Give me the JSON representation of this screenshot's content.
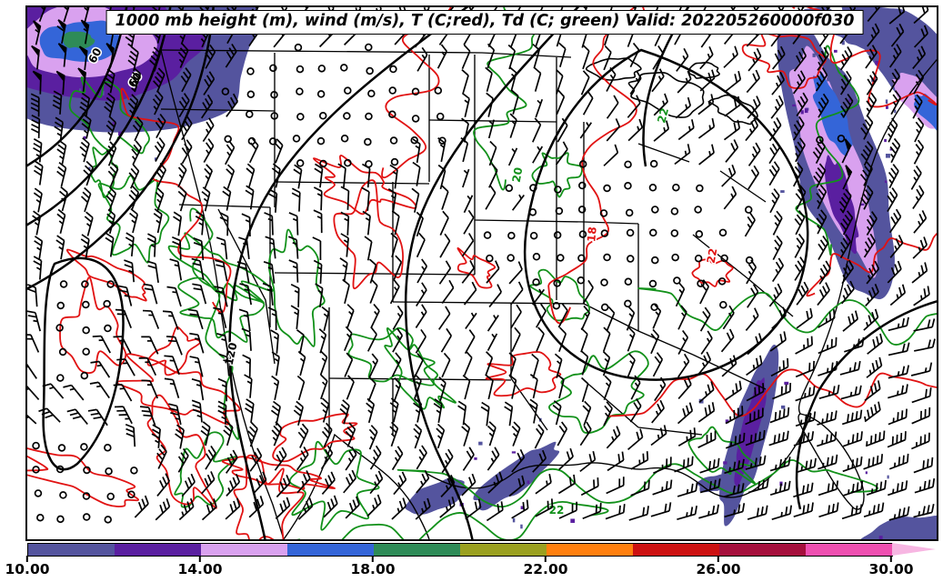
{
  "title": "1000 mb height (m), wind (m/s), T (C;red), Td (C; green) Valid: 202205260000f030",
  "chart_data": {
    "type": "heatmap",
    "subtype": "weather-contour-map",
    "region": "Continental United States",
    "level": "1000 mb",
    "valid_time": "202205260000",
    "forecast_hour": "f030",
    "fields": [
      {
        "name": "geopotential height",
        "units": "m",
        "style": "black contours"
      },
      {
        "name": "wind",
        "units": "m/s",
        "style": "barbs, calm circles"
      },
      {
        "name": "temperature",
        "units": "C",
        "style": "red contours"
      },
      {
        "name": "dewpoint",
        "units": "C",
        "style": "green contours"
      }
    ],
    "contour_labels": {
      "height": [
        "60",
        "60",
        "120"
      ],
      "temperature": [
        "18",
        "22"
      ],
      "dewpoint": [
        "20",
        "22",
        "22"
      ]
    },
    "contour_colors": {
      "height": "#000000",
      "temperature": "#e11212",
      "dewpoint": "#12911a",
      "wind": "#000000"
    },
    "colorbar": {
      "orientation": "horizontal",
      "extend": "max",
      "levels": [
        10,
        12,
        14,
        16,
        18,
        20,
        22,
        24,
        26,
        28,
        30
      ],
      "tick_labels": [
        "10.00",
        "14.00",
        "18.00",
        "22.00",
        "26.00",
        "30.00"
      ],
      "colors": [
        "#54549e",
        "#5a1fa0",
        "#d9a1ef",
        "#3465d8",
        "#2e8b57",
        "#9aa020",
        "#ff7f0e",
        "#cc1111",
        "#a50f3c",
        "#ee4fb0"
      ],
      "extend_color": "#f7b6e2"
    },
    "shaded_regions": [
      {
        "name": "pacific-northwest-low",
        "fill_levels": [
          "#54549e",
          "#5a1fa0",
          "#d9a1ef",
          "#3465d8",
          "#2e8b57"
        ]
      },
      {
        "name": "atlantic-coast-band",
        "fill_levels": [
          "#54549e",
          "#d9a1ef",
          "#3465d8",
          "#5a1fa0"
        ]
      },
      {
        "name": "appalachian-band",
        "fill_levels": [
          "#54549e",
          "#5a1fa0"
        ]
      },
      {
        "name": "gulf-coast-blob",
        "fill_levels": [
          "#54549e"
        ]
      },
      {
        "name": "southeast-corner-blob",
        "fill_levels": [
          "#54549e"
        ]
      }
    ]
  }
}
